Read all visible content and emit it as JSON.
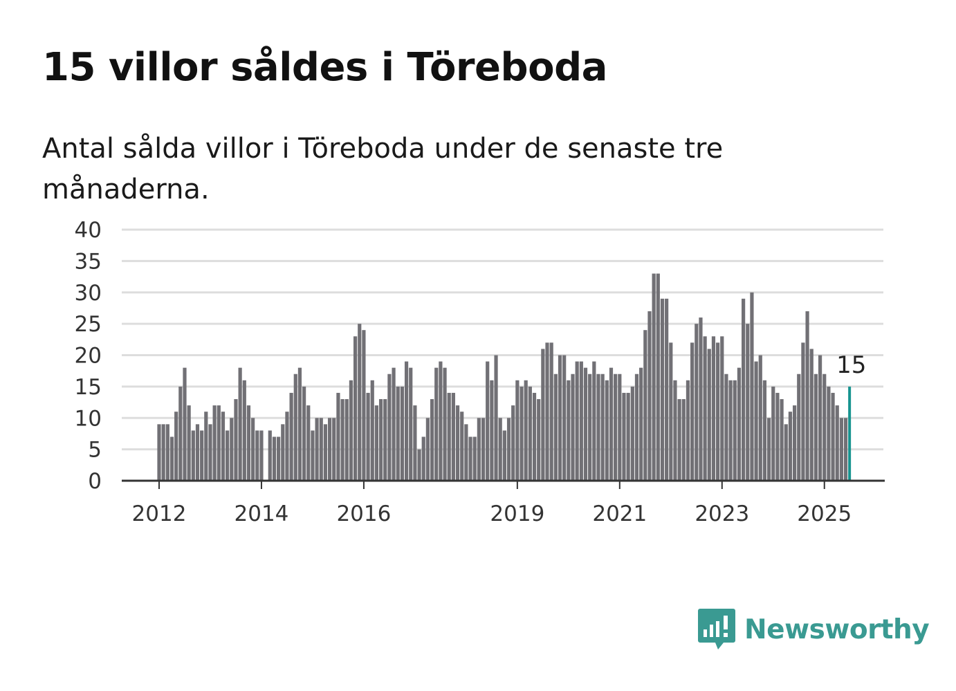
{
  "title": "15 villor såldes i Töreboda",
  "subtitle": "Antal sålda villor i Töreboda under de senaste tre månaderna.",
  "brand": {
    "name": "Newsworthy",
    "icon": "newsworthy-logo-icon",
    "color": "#3a9a92"
  },
  "colors": {
    "bar": "#717075",
    "highlight": "#17948f",
    "grid": "#dddddd",
    "axis": "#333333"
  },
  "chart_data": {
    "type": "bar",
    "y_ticks": [
      "0",
      "5",
      "10",
      "15",
      "20",
      "25",
      "30",
      "35",
      "40"
    ],
    "x_ticks": [
      {
        "label": "2012",
        "date": "2012-01"
      },
      {
        "label": "2014",
        "date": "2014-01"
      },
      {
        "label": "2016",
        "date": "2016-01"
      },
      {
        "label": "2019",
        "date": "2019-01"
      },
      {
        "label": "2021",
        "date": "2021-01"
      },
      {
        "label": "2023",
        "date": "2023-01"
      },
      {
        "label": "2025",
        "date": "2025-01"
      }
    ],
    "ylim": [
      0,
      40
    ],
    "grid": true,
    "series": [
      {
        "start": "2012-01",
        "values": [
          9,
          9,
          9,
          7,
          11,
          15,
          18,
          12,
          8,
          9,
          8,
          11,
          9,
          12,
          12,
          11,
          8,
          10,
          13,
          18,
          16,
          12,
          10,
          8,
          8,
          null,
          8,
          7,
          7,
          9,
          11,
          14,
          17,
          18,
          15,
          12,
          8,
          10,
          10,
          9,
          10,
          10,
          14,
          13,
          13,
          16,
          23,
          25,
          24,
          14,
          16,
          12,
          13,
          13,
          17,
          18,
          15,
          15,
          19,
          18,
          12,
          5,
          7,
          10,
          13,
          18,
          19,
          18,
          14,
          14,
          12,
          11,
          9,
          7,
          7,
          10,
          10,
          19,
          16,
          20,
          10,
          8,
          10,
          12,
          16,
          15,
          16,
          15,
          14,
          13,
          21,
          22,
          22,
          17,
          20,
          20,
          16,
          17,
          19,
          19,
          18,
          17,
          19,
          17,
          17,
          16,
          18,
          17,
          17,
          14,
          14,
          15,
          17,
          18,
          24,
          27,
          33,
          33,
          29,
          29,
          22,
          16,
          13,
          13,
          16,
          22,
          25,
          26,
          23,
          21,
          23,
          22,
          23,
          17,
          16,
          16,
          18,
          29,
          25,
          30,
          19,
          20,
          16,
          10,
          15,
          14,
          13,
          9,
          11,
          12,
          17,
          22,
          27,
          21,
          17,
          20,
          17,
          15,
          14,
          12,
          10,
          10,
          15
        ]
      }
    ],
    "highlight_value": 15,
    "highlight_label": "15"
  }
}
